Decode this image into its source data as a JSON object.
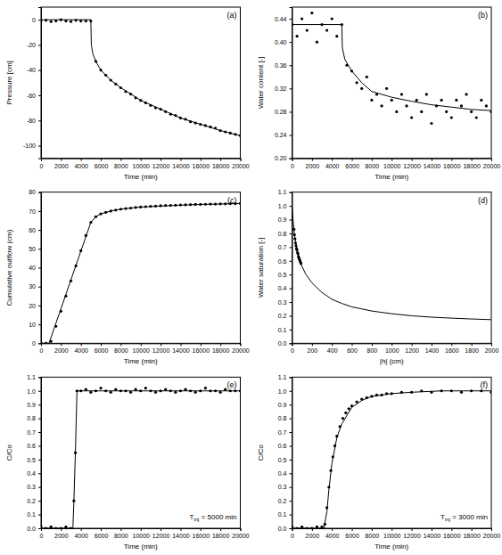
{
  "chart_data": [
    {
      "type": "scatter",
      "title": "(a)",
      "x_label": "Time (min)",
      "y_label": "Pressure [cm]",
      "xlim": [
        0,
        20000
      ],
      "ylim": [
        -110,
        10
      ],
      "xticks": [
        0,
        2000,
        4000,
        6000,
        8000,
        10000,
        12000,
        14000,
        16000,
        18000,
        20000
      ],
      "yticks": [
        -100,
        -80,
        -60,
        -40,
        -20,
        0
      ],
      "series": [
        {
          "type": "scatter",
          "color": "#000000",
          "marker": "circle",
          "x": [
            0,
            500,
            1000,
            1500,
            2000,
            2500,
            3000,
            3500,
            4000,
            4500,
            5000,
            5500,
            6000,
            6500,
            7000,
            7500,
            8000,
            8500,
            9000,
            9500,
            10000,
            10500,
            11000,
            11500,
            12000,
            12500,
            13000,
            13500,
            14000,
            14500,
            15000,
            15500,
            16000,
            16500,
            17000,
            17500,
            18000,
            18500,
            19000,
            19500,
            20000
          ],
          "values": [
            -1,
            -0.5,
            -1.5,
            -1,
            0,
            -1,
            -1.5,
            -0.5,
            -1,
            -1,
            -1,
            -33,
            -40,
            -44,
            -48,
            -51,
            -54,
            -57,
            -59,
            -62,
            -64,
            -66,
            -68,
            -70,
            -71,
            -73,
            -75,
            -76,
            -78,
            -79,
            -81,
            -82,
            -83,
            -84,
            -85,
            -86,
            -88,
            -89,
            -90,
            -91,
            -92
          ]
        },
        {
          "type": "line",
          "color": "#000000",
          "line_style": "solid",
          "x": [
            0,
            5000,
            5050,
            5200,
            5500,
            6000,
            7000,
            8000,
            10000,
            12000,
            14000,
            16000,
            18000,
            20000
          ],
          "values": [
            0,
            0,
            -20,
            -27,
            -33,
            -40,
            -48,
            -54,
            -64,
            -71,
            -78,
            -83,
            -88,
            -92
          ]
        }
      ]
    },
    {
      "type": "scatter",
      "title": "(b)",
      "x_label": "Time (min)",
      "y_label": "Water content [-]",
      "xlim": [
        0,
        20000
      ],
      "ylim": [
        0.2,
        0.46
      ],
      "xticks": [
        0,
        2000,
        4000,
        6000,
        8000,
        10000,
        12000,
        14000,
        16000,
        18000,
        20000
      ],
      "yticks": [
        {
          "value": 0.2,
          "label": "0.20"
        },
        0.24,
        0.28,
        0.32,
        0.36,
        {
          "value": 0.4,
          "label": "0.40"
        },
        0.44
      ],
      "series": [
        {
          "type": "scatter",
          "color": "#000000",
          "marker": "circle",
          "x": [
            0,
            500,
            1000,
            1500,
            2000,
            2500,
            3000,
            3500,
            4000,
            4500,
            5000,
            5500,
            6000,
            6500,
            7000,
            7500,
            8000,
            8500,
            9000,
            9500,
            10000,
            10500,
            11000,
            11500,
            12000,
            12500,
            13000,
            13500,
            14000,
            14500,
            15000,
            15500,
            16000,
            16500,
            17000,
            17500,
            18000,
            18500,
            19000,
            19500,
            20000
          ],
          "values": [
            0.43,
            0.41,
            0.44,
            0.42,
            0.45,
            0.4,
            0.43,
            0.42,
            0.44,
            0.41,
            0.43,
            0.36,
            0.35,
            0.33,
            0.32,
            0.34,
            0.3,
            0.31,
            0.29,
            0.32,
            0.3,
            0.28,
            0.31,
            0.29,
            0.27,
            0.3,
            0.28,
            0.31,
            0.26,
            0.29,
            0.3,
            0.28,
            0.27,
            0.3,
            0.29,
            0.31,
            0.28,
            0.27,
            0.3,
            0.29,
            0.28
          ]
        },
        {
          "type": "line",
          "color": "#000000",
          "line_style": "solid",
          "x": [
            0,
            5000,
            5050,
            5300,
            6000,
            7000,
            8000,
            10000,
            12000,
            14000,
            16000,
            18000,
            20000
          ],
          "values": [
            0.43,
            0.43,
            0.39,
            0.37,
            0.35,
            0.33,
            0.315,
            0.305,
            0.298,
            0.292,
            0.288,
            0.284,
            0.282
          ]
        }
      ]
    },
    {
      "type": "scatter",
      "title": "(c)",
      "x_label": "Time (min)",
      "y_label": "Cumulative outflow (cm)",
      "xlim": [
        0,
        20000
      ],
      "ylim": [
        0,
        80
      ],
      "xticks": [
        0,
        2000,
        4000,
        6000,
        8000,
        10000,
        12000,
        14000,
        16000,
        18000,
        20000
      ],
      "yticks": [
        0,
        10,
        20,
        30,
        40,
        50,
        60,
        70,
        80
      ],
      "series": [
        {
          "type": "scatter",
          "color": "#000000",
          "marker": "circle",
          "x": [
            0,
            500,
            1000,
            1500,
            2000,
            2500,
            3000,
            3500,
            4000,
            4500,
            5000,
            5500,
            6000,
            6500,
            7000,
            7500,
            8000,
            8500,
            9000,
            9500,
            10000,
            10500,
            11000,
            11500,
            12000,
            12500,
            13000,
            13500,
            14000,
            14500,
            15000,
            15500,
            16000,
            16500,
            17000,
            17500,
            18000,
            18500,
            19000,
            19500,
            20000
          ],
          "values": [
            0,
            0,
            1,
            9,
            17,
            25,
            33,
            41,
            49,
            57,
            64,
            67,
            68.5,
            69.3,
            70,
            70.5,
            71,
            71.3,
            71.6,
            71.9,
            72.1,
            72.3,
            72.5,
            72.6,
            72.8,
            72.9,
            73.0,
            73.1,
            73.2,
            73.3,
            73.4,
            73.5,
            73.5,
            73.6,
            73.7,
            73.7,
            73.8,
            73.8,
            73.9,
            73.9,
            74.0
          ]
        },
        {
          "type": "line",
          "color": "#000000",
          "line_style": "solid",
          "x": [
            0,
            800,
            5000,
            5500,
            6000,
            7000,
            8000,
            10000,
            12000,
            14000,
            16000,
            18000,
            20000
          ],
          "values": [
            0,
            0,
            64,
            67,
            68.5,
            70,
            71,
            72.1,
            72.6,
            73.1,
            73.5,
            73.7,
            74
          ]
        }
      ]
    },
    {
      "type": "scatter",
      "title": "(d)",
      "x_label": "|h| (cm)",
      "y_label": "Water saturation [-]",
      "xlim": [
        0,
        2000
      ],
      "ylim": [
        0,
        1.1
      ],
      "xticks": [
        0,
        200,
        400,
        600,
        800,
        1000,
        1200,
        1400,
        1600,
        1800,
        2000
      ],
      "yticks": [
        {
          "value": 0,
          "label": "0.0"
        },
        0.1,
        0.2,
        0.3,
        0.4,
        0.5,
        0.6,
        0.7,
        0.8,
        0.9,
        {
          "value": 1,
          "label": "1.0"
        },
        1.1
      ],
      "series": [
        {
          "type": "line",
          "color": "#000000",
          "line_style": "solid",
          "x": [
            0,
            10,
            20,
            30,
            50,
            80,
            100,
            140,
            200,
            300,
            400,
            500,
            600,
            700,
            800,
            900,
            1000,
            1200,
            1400,
            1600,
            1800,
            2000
          ],
          "values": [
            1.0,
            0.9,
            0.82,
            0.76,
            0.68,
            0.6,
            0.56,
            0.5,
            0.44,
            0.37,
            0.32,
            0.29,
            0.265,
            0.25,
            0.235,
            0.225,
            0.215,
            0.2,
            0.19,
            0.183,
            0.177,
            0.172
          ]
        },
        {
          "type": "scatter",
          "color": "#000000",
          "marker": "circle",
          "x": [
            20,
            25,
            30,
            35,
            40,
            45,
            50,
            55,
            60,
            65,
            70,
            75,
            80,
            85,
            90
          ],
          "values": [
            0.83,
            0.79,
            0.76,
            0.73,
            0.71,
            0.69,
            0.68,
            0.66,
            0.65,
            0.63,
            0.62,
            0.61,
            0.6,
            0.59,
            0.58
          ]
        }
      ]
    },
    {
      "type": "scatter",
      "title": "(e)",
      "x_label": "Time (min)",
      "y_label": "C/Co",
      "annotation": [
        "T",
        "inj",
        " = 5000 min"
      ],
      "xlim": [
        0,
        20000
      ],
      "ylim": [
        0,
        1.1
      ],
      "xticks": [
        0,
        2000,
        4000,
        6000,
        8000,
        10000,
        12000,
        14000,
        16000,
        18000,
        20000
      ],
      "yticks": [
        {
          "value": 0,
          "label": "0.0"
        },
        0.1,
        0.2,
        0.3,
        0.4,
        0.5,
        0.6,
        0.7,
        0.8,
        0.9,
        {
          "value": 1,
          "label": "1.0"
        },
        1.1
      ],
      "series": [
        {
          "type": "scatter",
          "color": "#000000",
          "marker": "circle",
          "x": [
            0,
            500,
            1000,
            1500,
            2000,
            2500,
            3000,
            3300,
            3450,
            3600,
            4000,
            4500,
            5000,
            5500,
            6000,
            6500,
            7000,
            7500,
            8000,
            8500,
            9000,
            9500,
            10000,
            10500,
            11000,
            11500,
            12000,
            12500,
            13000,
            13500,
            14000,
            14500,
            15000,
            15500,
            16000,
            16500,
            17000,
            17500,
            18000,
            18500,
            19000,
            19500,
            20000
          ],
          "values": [
            0.01,
            0,
            0.01,
            0,
            0,
            0.01,
            0,
            0.2,
            0.55,
            1.0,
            1.0,
            1.01,
            0.99,
            1.0,
            1.02,
            1.0,
            0.99,
            1.01,
            1.0,
            1.0,
            0.99,
            1.01,
            1.0,
            1.02,
            1.0,
            0.99,
            1.0,
            1.01,
            1.0,
            0.99,
            1.0,
            1.01,
            1.0,
            0.99,
            1.0,
            1.02,
            1.0,
            1.0,
            0.99,
            1.01,
            1.0,
            1.0,
            1.0
          ]
        },
        {
          "type": "line",
          "color": "#000000",
          "line_style": "solid",
          "x": [
            0,
            3200,
            3300,
            3450,
            3600,
            3700,
            20000
          ],
          "values": [
            0,
            0,
            0.2,
            0.55,
            0.98,
            1.0,
            1.0
          ]
        }
      ]
    },
    {
      "type": "scatter",
      "title": "(f)",
      "x_label": "Time (min)",
      "y_label": "C/Co",
      "annotation": [
        "T",
        "inj",
        " = 3000 min"
      ],
      "xlim": [
        0,
        20000
      ],
      "ylim": [
        0,
        1.1
      ],
      "xticks": [
        0,
        2000,
        4000,
        6000,
        8000,
        10000,
        12000,
        14000,
        16000,
        18000,
        20000
      ],
      "yticks": [
        {
          "value": 0,
          "label": "0.0"
        },
        0.1,
        0.2,
        0.3,
        0.4,
        0.5,
        0.6,
        0.7,
        0.8,
        0.9,
        {
          "value": 1,
          "label": "1.0"
        },
        1.1
      ],
      "series": [
        {
          "type": "scatter",
          "color": "#000000",
          "marker": "circle",
          "x": [
            0,
            500,
            1000,
            1500,
            2000,
            2500,
            3000,
            3300,
            3500,
            3700,
            3900,
            4100,
            4300,
            4500,
            4800,
            5100,
            5400,
            5700,
            6000,
            6500,
            7000,
            7500,
            8000,
            8500,
            9000,
            9500,
            10000,
            11000,
            12000,
            13000,
            14000,
            15000,
            16000,
            17000,
            18000,
            19000,
            20000
          ],
          "values": [
            0.01,
            0,
            0.01,
            0,
            0,
            0.01,
            0.01,
            0.03,
            0.15,
            0.3,
            0.42,
            0.52,
            0.6,
            0.67,
            0.74,
            0.8,
            0.84,
            0.87,
            0.89,
            0.92,
            0.94,
            0.95,
            0.96,
            0.97,
            0.97,
            0.98,
            0.98,
            0.99,
            0.99,
            1.0,
            0.99,
            1.0,
            1.0,
            0.99,
            1.0,
            1.0,
            0.99
          ]
        },
        {
          "type": "line",
          "color": "#000000",
          "line_style": "solid",
          "x": [
            0,
            3200,
            3500,
            3700,
            4000,
            4500,
            5000,
            6000,
            7000,
            8000,
            10000,
            12000,
            15000,
            20000
          ],
          "values": [
            0,
            0,
            0.12,
            0.28,
            0.47,
            0.66,
            0.76,
            0.88,
            0.93,
            0.96,
            0.98,
            0.99,
            1.0,
            1.0
          ]
        }
      ]
    }
  ]
}
